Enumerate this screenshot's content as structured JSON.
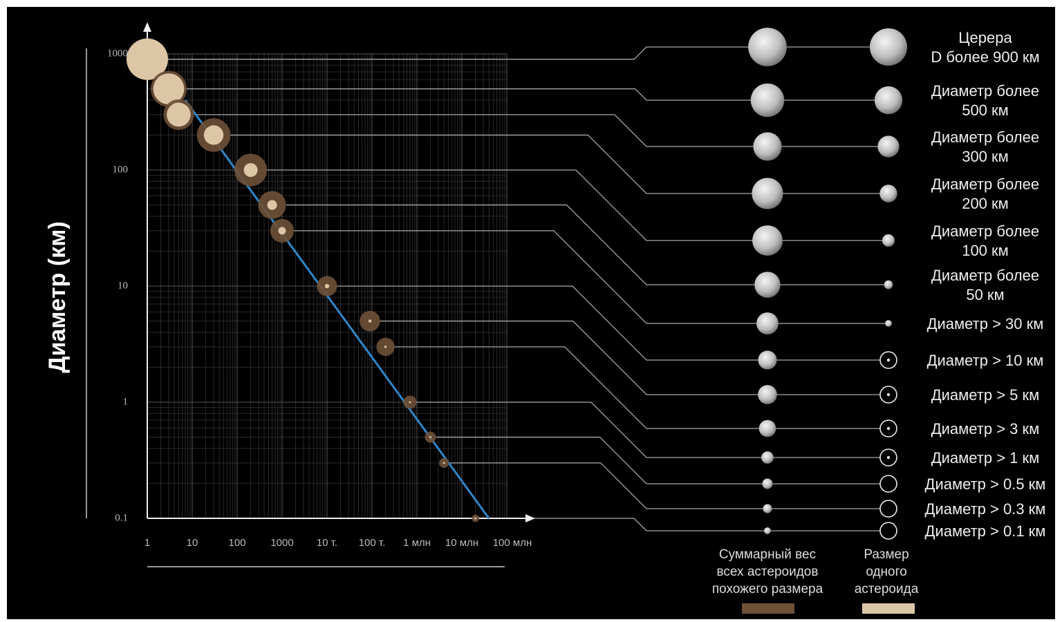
{
  "chart_data": {
    "type": "scatter",
    "ylabel": "Диаметр (км)",
    "xscale": "log",
    "yscale": "log",
    "grid": true,
    "xlim": [
      1,
      100000000
    ],
    "ylim": [
      0.1,
      1000
    ],
    "xticks": [
      1,
      10,
      100,
      1000,
      {
        "value": 10000,
        "label": "10 т."
      },
      {
        "value": 100000,
        "label": "100 т."
      },
      {
        "value": 1000000,
        "label": "1 млн"
      },
      {
        "value": 10000000,
        "label": "10 млн"
      },
      {
        "value": 100000000,
        "label": "100 млн"
      }
    ],
    "yticks": [
      0.1,
      1,
      10,
      100,
      1000
    ],
    "x": [
      1,
      3,
      5,
      30,
      200,
      600,
      1000,
      10000,
      90000,
      200000,
      700000,
      2000000,
      4000000,
      20000000
    ],
    "series": [
      {
        "name": "Суммарный вес\nвсех астероидов\nпохожего размера",
        "color": "#6e5037",
        "values": [
          900,
          500,
          300,
          200,
          100,
          50,
          30,
          10,
          5,
          3,
          1,
          0.5,
          0.3,
          0.1
        ]
      },
      {
        "name": "Размер\nодного\nастероида",
        "color": "#dcc6a6",
        "values": [
          900,
          500,
          300,
          200,
          100,
          50,
          30,
          10,
          5,
          3,
          1,
          0.5,
          0.3,
          0.1
        ]
      }
    ],
    "labels": [
      "Церера\nD более 900 км",
      "Диаметр более\n500 км",
      "Диаметр более\n300 км",
      "Диаметр более\n200 км",
      "Диаметр более\n100 км",
      "Диаметр более\n50 км",
      "Диаметр > 30 км",
      "Диаметр > 10 км",
      "Диаметр > 5 км",
      "Диаметр > 3 км",
      "Диаметр > 1 км",
      "Диаметр > 0.5 км",
      "Диаметр > 0.3 км",
      "Диаметр > 0.1 км"
    ],
    "trend": {
      "color": "#2f86c8",
      "x": [
        7,
        40000000
      ],
      "values": [
        400,
        0.1
      ]
    }
  }
}
